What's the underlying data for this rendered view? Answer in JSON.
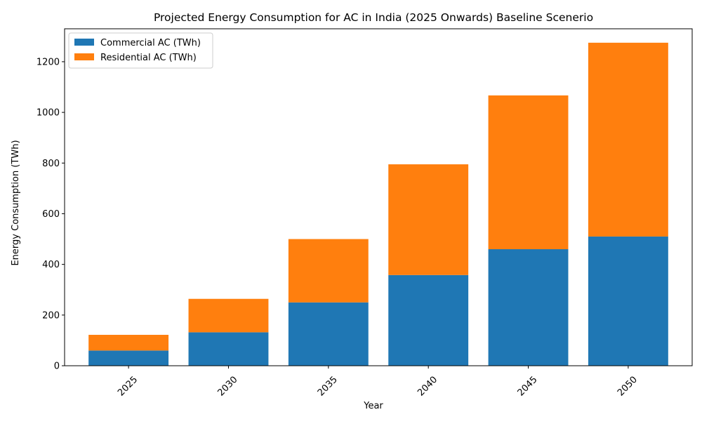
{
  "chart_data": {
    "type": "bar",
    "stacked": true,
    "title": "Projected Energy Consumption for AC in India (2025 Onwards) Baseline Scenerio",
    "xlabel": "Year",
    "ylabel": "Energy Consumption (TWh)",
    "categories": [
      "2025",
      "2030",
      "2035",
      "2040",
      "2045",
      "2050"
    ],
    "ylim": [
      0,
      1330
    ],
    "yticks": [
      0,
      200,
      400,
      600,
      800,
      1000,
      1200
    ],
    "grid": false,
    "legend_position": "top-left",
    "x_tick_rotation": 45,
    "series": [
      {
        "name": "Commercial AC (TWh)",
        "color": "#1f77b4",
        "values": [
          60,
          132,
          250,
          358,
          460,
          510
        ]
      },
      {
        "name": "Residential AC (TWh)",
        "color": "#ff7f0e",
        "values": [
          62,
          132,
          250,
          437,
          607,
          765
        ]
      }
    ]
  }
}
